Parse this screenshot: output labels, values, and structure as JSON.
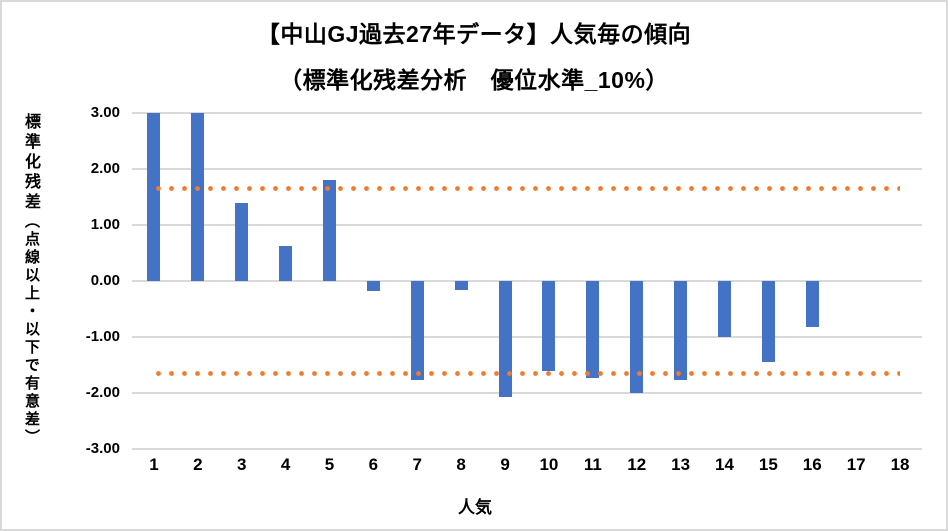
{
  "title": {
    "line1": "【中山GJ過去27年データ】人気毎の傾向",
    "line2": "（標準化残差分析　優位水準_10%）"
  },
  "chart_data": {
    "type": "bar",
    "title": "【中山GJ過去27年データ】人気毎の傾向（標準化残差分析　優位水準_10%）",
    "categories": [
      "1",
      "2",
      "3",
      "4",
      "5",
      "6",
      "7",
      "8",
      "9",
      "10",
      "11",
      "12",
      "13",
      "14",
      "15",
      "16",
      "17",
      "18"
    ],
    "values": [
      3.0,
      3.0,
      1.4,
      0.62,
      1.8,
      -0.18,
      -1.76,
      -0.16,
      -2.08,
      -1.61,
      -1.74,
      -2.0,
      -1.76,
      -1.0,
      -1.44,
      -0.83,
      0,
      0
    ],
    "xlabel": "人気",
    "ylabel": "標準化残差",
    "ylabel_note": "（点線以上・以下で有意差）",
    "ylim": [
      -3,
      3
    ],
    "ytick_labels": [
      "3.00",
      "2.00",
      "1.00",
      "0.00",
      "-1.00",
      "-2.00",
      "-3.00"
    ],
    "thresholds": [
      1.645,
      -1.645
    ],
    "grid": true,
    "legend": "none",
    "colors": {
      "bar": "#4472C4",
      "threshold": "#ED7D31",
      "gridline": "#D9D9D9",
      "text": "#000000",
      "background": "#FFFFFF",
      "border": "#D9D9D9"
    }
  }
}
